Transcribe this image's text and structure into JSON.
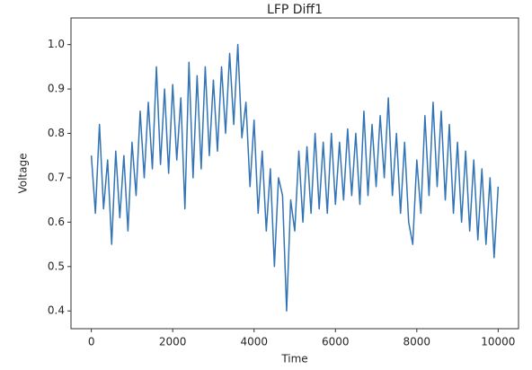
{
  "chart_data": {
    "type": "line",
    "title": "LFP Diff1",
    "x_label": "Time",
    "y_label": "Voltage",
    "color": "#3274b5",
    "x": [
      0,
      100,
      200,
      300,
      400,
      500,
      600,
      700,
      800,
      900,
      1000,
      1100,
      1200,
      1300,
      1400,
      1500,
      1600,
      1700,
      1800,
      1900,
      2000,
      2100,
      2200,
      2300,
      2400,
      2500,
      2600,
      2700,
      2800,
      2900,
      3000,
      3100,
      3200,
      3300,
      3400,
      3500,
      3600,
      3700,
      3800,
      3900,
      4000,
      4100,
      4200,
      4300,
      4400,
      4500,
      4600,
      4700,
      4800,
      4900,
      5000,
      5100,
      5200,
      5300,
      5400,
      5500,
      5600,
      5700,
      5800,
      5900,
      6000,
      6100,
      6200,
      6300,
      6400,
      6500,
      6600,
      6700,
      6800,
      6900,
      7000,
      7100,
      7200,
      7300,
      7400,
      7500,
      7600,
      7700,
      7800,
      7900,
      8000,
      8100,
      8200,
      8300,
      8400,
      8500,
      8600,
      8700,
      8800,
      8900,
      9000,
      9100,
      9200,
      9300,
      9400,
      9500,
      9600,
      9700,
      9800,
      9900,
      10000
    ],
    "values": [
      0.75,
      0.62,
      0.82,
      0.63,
      0.74,
      0.55,
      0.76,
      0.61,
      0.75,
      0.58,
      0.78,
      0.66,
      0.85,
      0.7,
      0.87,
      0.72,
      0.95,
      0.73,
      0.9,
      0.71,
      0.91,
      0.74,
      0.88,
      0.63,
      0.96,
      0.7,
      0.93,
      0.72,
      0.95,
      0.75,
      0.92,
      0.76,
      0.95,
      0.8,
      0.98,
      0.82,
      1.0,
      0.79,
      0.87,
      0.68,
      0.83,
      0.62,
      0.76,
      0.58,
      0.72,
      0.5,
      0.7,
      0.66,
      0.4,
      0.65,
      0.58,
      0.76,
      0.6,
      0.77,
      0.62,
      0.8,
      0.63,
      0.78,
      0.62,
      0.8,
      0.64,
      0.78,
      0.65,
      0.81,
      0.66,
      0.8,
      0.64,
      0.85,
      0.66,
      0.82,
      0.68,
      0.84,
      0.7,
      0.88,
      0.66,
      0.8,
      0.62,
      0.78,
      0.6,
      0.55,
      0.74,
      0.62,
      0.84,
      0.66,
      0.87,
      0.68,
      0.85,
      0.65,
      0.82,
      0.62,
      0.78,
      0.6,
      0.76,
      0.58,
      0.74,
      0.56,
      0.72,
      0.55,
      0.7,
      0.52,
      0.68
    ],
    "xlim": [
      -500,
      10500
    ],
    "xticks": [
      0,
      2000,
      4000,
      6000,
      8000,
      10000
    ],
    "ylim": [
      0.36,
      1.06
    ],
    "yticks": [
      0.4,
      0.5,
      0.6,
      0.7,
      0.8,
      0.9,
      {
        "value": 1,
        "label": "1.0"
      }
    ]
  }
}
